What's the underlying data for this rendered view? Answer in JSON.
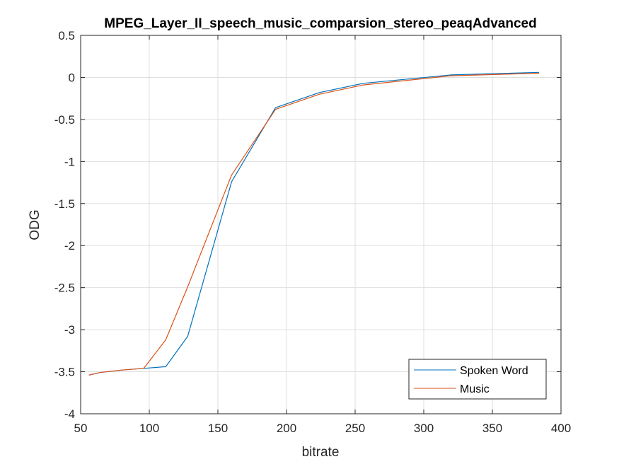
{
  "chart_data": {
    "type": "line",
    "title": "MPEG_Layer_II_speech_music_comparsion_stereo_peaqAdvanced",
    "xlabel": "bitrate",
    "ylabel": "ODG",
    "xlim": [
      50,
      400
    ],
    "ylim": [
      -4,
      0.5
    ],
    "xticks": [
      50,
      100,
      150,
      200,
      250,
      300,
      350,
      400
    ],
    "yticks": [
      -4,
      -3.5,
      -3,
      -2.5,
      -2,
      -1.5,
      -1,
      -0.5,
      0,
      0.5
    ],
    "grid": true,
    "legend_position": "bottom-right",
    "series": [
      {
        "name": "Spoken Word",
        "color": "#0072BD",
        "x": [
          56,
          64,
          80,
          96,
          112,
          128,
          160,
          192,
          224,
          256,
          320,
          384
        ],
        "y": [
          -3.54,
          -3.51,
          -3.48,
          -3.46,
          -3.44,
          -3.08,
          -1.24,
          -0.36,
          -0.18,
          -0.07,
          0.03,
          0.06
        ]
      },
      {
        "name": "Music",
        "color": "#D95319",
        "x": [
          56,
          64,
          80,
          96,
          112,
          128,
          160,
          192,
          224,
          256,
          320,
          384
        ],
        "y": [
          -3.54,
          -3.51,
          -3.48,
          -3.46,
          -3.12,
          -2.49,
          -1.16,
          -0.38,
          -0.2,
          -0.09,
          0.02,
          0.05
        ]
      }
    ]
  }
}
